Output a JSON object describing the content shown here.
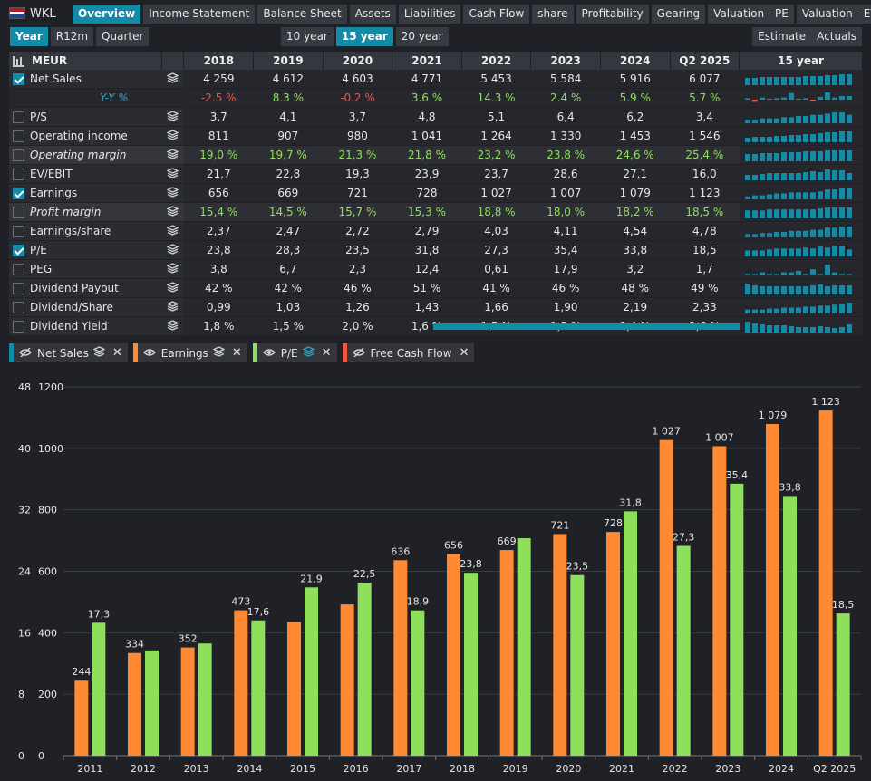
{
  "header": {
    "ticker": "WKL",
    "tabs": [
      "Overview",
      "Income Statement",
      "Balance Sheet",
      "Assets",
      "Liabilities",
      "Cash Flow",
      "share",
      "Profitability",
      "Gearing",
      "Valuation - PE",
      "Valuation - EV"
    ],
    "active_tab": 0
  },
  "period_tabs": [
    "Year",
    "R12m",
    "Quarter"
  ],
  "range_tabs": [
    "10 year",
    "15 year",
    "20 year"
  ],
  "mode_tabs": [
    "Estimate",
    "Actuals"
  ],
  "table": {
    "unit": "MEUR",
    "years": [
      "2018",
      "2019",
      "2020",
      "2021",
      "2022",
      "2023",
      "2024",
      "Q2 2025"
    ],
    "spark_label": "15 year",
    "rows": [
      {
        "label": "Net Sales",
        "check": true,
        "style": "data",
        "vals": [
          "4 259",
          "4 612",
          "4 603",
          "4 771",
          "5 453",
          "5 584",
          "5 916",
          "6 077"
        ],
        "spark": [
          8,
          8,
          9,
          9,
          9,
          9,
          9,
          9,
          10,
          10,
          10,
          11,
          11,
          12,
          12
        ]
      },
      {
        "label": "Y-Y %",
        "check": null,
        "style": "yy",
        "vals": [
          "-2.5 %",
          "8.3 %",
          "-0.2 %",
          "3.6 %",
          "14.3 %",
          "2.4 %",
          "5.9 %",
          "5.7 %"
        ],
        "signs": [
          "neg",
          "pos",
          "neg",
          "pos",
          "pos",
          "pos",
          "pos",
          "pos"
        ],
        "spark": [
          2,
          -3,
          3,
          1,
          2,
          3,
          9,
          1,
          2,
          -2,
          4,
          10,
          3,
          5,
          5
        ]
      },
      {
        "label": "P/S",
        "check": false,
        "style": "data",
        "vals": [
          "3,7",
          "4,1",
          "3,7",
          "4,8",
          "5,1",
          "6,4",
          "6,2",
          "3,4"
        ],
        "spark": [
          3,
          3,
          4,
          4,
          4,
          5,
          5,
          6,
          6,
          7,
          7,
          8,
          9,
          9,
          7
        ]
      },
      {
        "label": "Operating income",
        "check": false,
        "style": "data",
        "vals": [
          "811",
          "907",
          "980",
          "1 041",
          "1 264",
          "1 330",
          "1 453",
          "1 546"
        ],
        "spark": [
          5,
          6,
          6,
          6,
          7,
          7,
          8,
          8,
          9,
          9,
          10,
          11,
          11,
          12,
          12
        ]
      },
      {
        "label": "Operating margin",
        "check": false,
        "style": "alt",
        "vals": [
          "19,0 %",
          "19,7 %",
          "21,3 %",
          "21,8 %",
          "23,2 %",
          "23,8 %",
          "24,6 %",
          "25,4 %"
        ],
        "spark": [
          8,
          8,
          9,
          9,
          9,
          10,
          10,
          10,
          11,
          11,
          11,
          12,
          12,
          12,
          12
        ]
      },
      {
        "label": "EV/EBIT",
        "check": false,
        "style": "data",
        "vals": [
          "21,7",
          "22,8",
          "19,3",
          "23,9",
          "23,7",
          "28,6",
          "27,1",
          "16,0"
        ],
        "spark": [
          6,
          6,
          7,
          8,
          8,
          8,
          8,
          8,
          9,
          10,
          9,
          12,
          11,
          11,
          8
        ]
      },
      {
        "label": "Earnings",
        "check": true,
        "style": "data",
        "vals": [
          "656",
          "669",
          "721",
          "728",
          "1 027",
          "1 007",
          "1 079",
          "1 123"
        ],
        "spark": [
          3,
          4,
          4,
          5,
          6,
          6,
          7,
          7,
          7,
          7,
          8,
          10,
          10,
          11,
          11
        ]
      },
      {
        "label": "Profit margin",
        "check": false,
        "style": "alt",
        "vals": [
          "15,4 %",
          "14,5 %",
          "15,7 %",
          "15,3 %",
          "18,8 %",
          "18,0 %",
          "18,2 %",
          "18,5 %"
        ],
        "spark": [
          8,
          8,
          8,
          9,
          9,
          9,
          9,
          9,
          9,
          9,
          10,
          11,
          11,
          11,
          11
        ]
      },
      {
        "label": "Earnings/share",
        "check": false,
        "style": "data",
        "vals": [
          "2,37",
          "2,47",
          "2,72",
          "2,79",
          "4,03",
          "4,11",
          "4,54",
          "4,78"
        ],
        "spark": [
          3,
          3,
          4,
          4,
          5,
          5,
          6,
          6,
          6,
          7,
          7,
          9,
          9,
          10,
          10
        ]
      },
      {
        "label": "P/E",
        "check": true,
        "style": "data",
        "vals": [
          "23,8",
          "28,3",
          "23,5",
          "31,8",
          "27,3",
          "35,4",
          "33,8",
          "18,5"
        ],
        "spark": [
          6,
          6,
          6,
          7,
          8,
          8,
          8,
          8,
          9,
          8,
          10,
          9,
          11,
          11,
          7
        ]
      },
      {
        "label": "PEG",
        "check": false,
        "style": "data",
        "vals": [
          "3,8",
          "6,7",
          "2,3",
          "12,4",
          "0,61",
          "17,9",
          "3,2",
          "1,7"
        ],
        "spark": [
          1,
          1,
          2,
          1,
          1,
          2,
          2,
          3,
          1,
          4,
          1,
          7,
          2,
          1,
          1
        ]
      },
      {
        "label": "Dividend Payout",
        "check": false,
        "style": "data",
        "vals": [
          "42 %",
          "42 %",
          "46 %",
          "51 %",
          "41 %",
          "46 %",
          "48 %",
          "49 %"
        ],
        "spark": [
          12,
          10,
          9,
          9,
          9,
          9,
          9,
          9,
          9,
          10,
          11,
          9,
          10,
          10,
          10
        ]
      },
      {
        "label": "Dividend/Share",
        "check": false,
        "style": "data",
        "vals": [
          "0,99",
          "1,03",
          "1,26",
          "1,43",
          "1,66",
          "1,90",
          "2,19",
          "2,33"
        ],
        "spark": [
          4,
          4,
          4,
          5,
          5,
          6,
          6,
          6,
          7,
          7,
          8,
          8,
          9,
          10,
          11
        ]
      },
      {
        "label": "Dividend Yield",
        "check": false,
        "style": "data",
        "vals": [
          "1,8 %",
          "1,5 %",
          "2,0 %",
          "1,6 %",
          "1,5 %",
          "1,3 %",
          "1,4 %",
          "2,6 %"
        ],
        "spark": [
          12,
          10,
          9,
          8,
          8,
          8,
          7,
          6,
          6,
          6,
          7,
          6,
          5,
          6,
          9
        ]
      }
    ]
  },
  "legend": [
    {
      "label": "Net Sales",
      "color": "#138ba6",
      "icon": "eye-slash-icon"
    },
    {
      "label": "Earnings",
      "color": "#ff8a33",
      "icon": "eye-icon"
    },
    {
      "label": "P/E",
      "color": "#8ee05a",
      "icon": "eye-icon"
    },
    {
      "label": "Free Cash Flow",
      "color": "#f05545",
      "icon": "eye-slash-icon"
    }
  ],
  "chart_data": {
    "type": "bar",
    "categories": [
      "2011",
      "2012",
      "2013",
      "2014",
      "2015",
      "2016",
      "2017",
      "2018",
      "2019",
      "2020",
      "2021",
      "2022",
      "2023",
      "2024",
      "Q2 2025"
    ],
    "series": [
      {
        "name": "Earnings",
        "color": "#ff8a33",
        "axis": "right",
        "values": [
          244,
          334,
          352,
          473,
          435,
          492,
          636,
          656,
          669,
          721,
          728,
          1027,
          1007,
          1079,
          1123
        ],
        "labels": [
          "244",
          "334",
          "352",
          "473",
          "",
          "",
          "636",
          "656",
          "669",
          "721",
          "728",
          "1 027",
          "1 007",
          "1 079",
          "1 123"
        ]
      },
      {
        "name": "P/E",
        "color": "#8ee05a",
        "axis": "left",
        "values": [
          17.3,
          13.7,
          14.6,
          17.6,
          21.9,
          22.5,
          18.9,
          23.8,
          28.3,
          23.5,
          31.8,
          27.3,
          35.4,
          33.8,
          18.5
        ],
        "labels": [
          "17,3",
          "",
          "",
          "17,6",
          "21,9",
          "22,5",
          "18,9",
          "23,8",
          "",
          "23,5",
          "31,8",
          "27,3",
          "35,4",
          "33,8",
          "18,5"
        ]
      }
    ],
    "left_axis": {
      "ticks": [
        "0",
        "8",
        "16",
        "24",
        "32",
        "40",
        "48"
      ],
      "ylim": [
        0,
        48
      ]
    },
    "right_axis": {
      "ticks": [
        "0",
        "200",
        "400",
        "600",
        "800",
        "1000",
        "1200"
      ],
      "ylim": [
        0,
        1200
      ]
    },
    "grid": true
  }
}
